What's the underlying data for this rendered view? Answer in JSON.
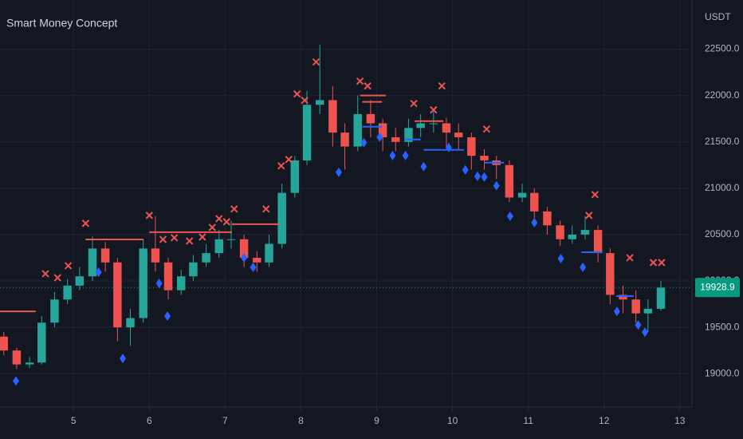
{
  "chart_data": {
    "type": "candlestick",
    "title": "Smart Money Concept",
    "currency": "USDT",
    "xlim": [
      4.03,
      13.16
    ],
    "ylim": [
      18640,
      23030
    ],
    "xticks": [
      5,
      6,
      7,
      8,
      9,
      10,
      11,
      12,
      13
    ],
    "yticks": [
      {
        "value": 19000,
        "label": "19000.0"
      },
      {
        "value": 19500,
        "label": "19500.0"
      },
      {
        "value": 20000,
        "label": "20000.0"
      },
      {
        "value": 20500,
        "label": "20500.0"
      },
      {
        "value": 21000,
        "label": "21000.0"
      },
      {
        "value": 21500,
        "label": "21500.0"
      },
      {
        "value": 22000,
        "label": "22000.0"
      },
      {
        "value": 22500,
        "label": "22500.0"
      }
    ],
    "grid": true,
    "up_color": "#26a69a",
    "down_color": "#ef5350",
    "last_price": 19928.9,
    "last_price_color": "#089981",
    "candles": {
      "x": [
        4.08,
        4.25,
        4.42,
        4.58,
        4.75,
        4.92,
        5.08,
        5.25,
        5.42,
        5.58,
        5.75,
        5.92,
        6.08,
        6.25,
        6.42,
        6.58,
        6.75,
        6.92,
        7.08,
        7.25,
        7.42,
        7.58,
        7.75,
        7.92,
        8.08,
        8.25,
        8.42,
        8.58,
        8.75,
        8.92,
        9.08,
        9.25,
        9.42,
        9.58,
        9.75,
        9.92,
        10.08,
        10.25,
        10.42,
        10.58,
        10.75,
        10.92,
        11.08,
        11.25,
        11.42,
        11.58,
        11.75,
        11.92,
        12.08,
        12.25,
        12.42,
        12.58,
        12.75
      ],
      "open": [
        19400,
        19250,
        19100,
        19120,
        19550,
        19800,
        19950,
        20050,
        20350,
        20200,
        19500,
        19600,
        20350,
        20200,
        19900,
        20050,
        20200,
        20300,
        20450,
        20450,
        20250,
        20200,
        20400,
        20950,
        21300,
        21900,
        21950,
        21600,
        21450,
        21800,
        21700,
        21550,
        21500,
        21650,
        21700,
        21700,
        21600,
        21550,
        21350,
        21300,
        21250,
        20900,
        20950,
        20750,
        20600,
        20450,
        20500,
        20550,
        20300,
        19850,
        19800,
        19650,
        19700
      ],
      "high": [
        19450,
        19280,
        19180,
        19620,
        19880,
        20020,
        20150,
        20480,
        20420,
        20250,
        19700,
        20450,
        20700,
        20250,
        20120,
        20280,
        20400,
        20550,
        20650,
        20500,
        20320,
        20500,
        21050,
        21350,
        22050,
        22550,
        22100,
        21700,
        22000,
        21950,
        21750,
        21650,
        21750,
        21800,
        21850,
        21760,
        21700,
        21600,
        21420,
        21350,
        21300,
        21050,
        21000,
        20800,
        20650,
        20600,
        20700,
        20600,
        20350,
        19950,
        19900,
        19800,
        20000
      ],
      "low": [
        19200,
        19050,
        19060,
        19100,
        19500,
        19750,
        19900,
        20000,
        20100,
        19350,
        19300,
        19550,
        20100,
        19800,
        19850,
        20000,
        20150,
        20250,
        20350,
        20150,
        20100,
        20150,
        20350,
        20900,
        21250,
        21800,
        21450,
        21200,
        21400,
        21550,
        21400,
        21400,
        21450,
        21550,
        21600,
        21450,
        21420,
        21200,
        21200,
        21100,
        20850,
        20850,
        20600,
        20500,
        20380,
        20400,
        20450,
        20200,
        19750,
        19650,
        19550,
        19450,
        19680
      ],
      "close": [
        19250,
        19100,
        19120,
        19550,
        19800,
        19950,
        20050,
        20350,
        20200,
        19500,
        19600,
        20350,
        20200,
        19900,
        20050,
        20200,
        20300,
        20450,
        20450,
        20250,
        20200,
        20400,
        20950,
        21300,
        21900,
        21950,
        21600,
        21450,
        21800,
        21700,
        21550,
        21500,
        21650,
        21700,
        21700,
        21600,
        21550,
        21350,
        21300,
        21250,
        20900,
        20950,
        20750,
        20600,
        20450,
        20500,
        20550,
        20300,
        19850,
        19800,
        19650,
        19700,
        19928.9
      ]
    },
    "bearish_markers": {
      "color": "#ef5350",
      "x": [
        4.63,
        4.79,
        4.93,
        5.16,
        6.0,
        6.18,
        6.33,
        6.53,
        6.7,
        6.83,
        6.92,
        7.02,
        7.12,
        7.54,
        7.74,
        7.84,
        7.95,
        8.05,
        8.2,
        8.78,
        8.88,
        9.49,
        9.75,
        9.86,
        10.45,
        11.8,
        11.88,
        12.34,
        12.65,
        12.76
      ],
      "y": [
        20078,
        20035,
        20164,
        20621,
        20707,
        20448,
        20466,
        20431,
        20474,
        20578,
        20672,
        20638,
        20776,
        20776,
        21241,
        21310,
        22017,
        21948,
        22362,
        22155,
        22103,
        21914,
        21845,
        22103,
        21638,
        20707,
        20931,
        20250,
        20198,
        20198
      ]
    },
    "bullish_markers": {
      "color": "#2962ff",
      "x": [
        4.24,
        5.33,
        5.65,
        6.13,
        6.24,
        7.25,
        7.37,
        8.5,
        8.83,
        9.04,
        9.21,
        9.38,
        9.62,
        9.95,
        10.17,
        10.33,
        10.42,
        10.58,
        10.76,
        11.08,
        11.43,
        11.72,
        12.17,
        12.45,
        12.54
      ],
      "y": [
        18922,
        20095,
        19164,
        19974,
        19621,
        20250,
        20147,
        21172,
        21491,
        21552,
        21353,
        21353,
        21233,
        21440,
        21198,
        21129,
        21121,
        21026,
        20698,
        20629,
        20241,
        20147,
        19672,
        19526,
        19448
      ]
    },
    "levels": [
      {
        "color": "#ef5350",
        "x0": 4.03,
        "x1": 4.5,
        "value": 19672
      },
      {
        "color": "#ef5350",
        "x0": 5.16,
        "x1": 5.92,
        "value": 20448
      },
      {
        "color": "#ef5350",
        "x0": 6.0,
        "x1": 7.09,
        "value": 20526
      },
      {
        "color": "#ef5350",
        "x0": 7.09,
        "x1": 7.71,
        "value": 20612
      },
      {
        "color": "#ef5350",
        "x0": 8.78,
        "x1": 9.12,
        "value": 22000
      },
      {
        "color": "#ef5350",
        "x0": 8.81,
        "x1": 9.07,
        "value": 21931
      },
      {
        "color": "#ef5350",
        "x0": 9.5,
        "x1": 9.88,
        "value": 21724
      },
      {
        "color": "#2962ff",
        "x0": 8.81,
        "x1": 9.07,
        "value": 21664
      },
      {
        "color": "#2962ff",
        "x0": 9.37,
        "x1": 9.58,
        "value": 21526
      },
      {
        "color": "#2962ff",
        "x0": 9.62,
        "x1": 10.15,
        "value": 21414
      },
      {
        "color": "#2962ff",
        "x0": 10.42,
        "x1": 10.68,
        "value": 21276
      },
      {
        "color": "#2962ff",
        "x0": 11.7,
        "x1": 11.98,
        "value": 20310
      },
      {
        "color": "#2962ff",
        "x0": 12.16,
        "x1": 12.39,
        "value": 19836
      }
    ]
  }
}
